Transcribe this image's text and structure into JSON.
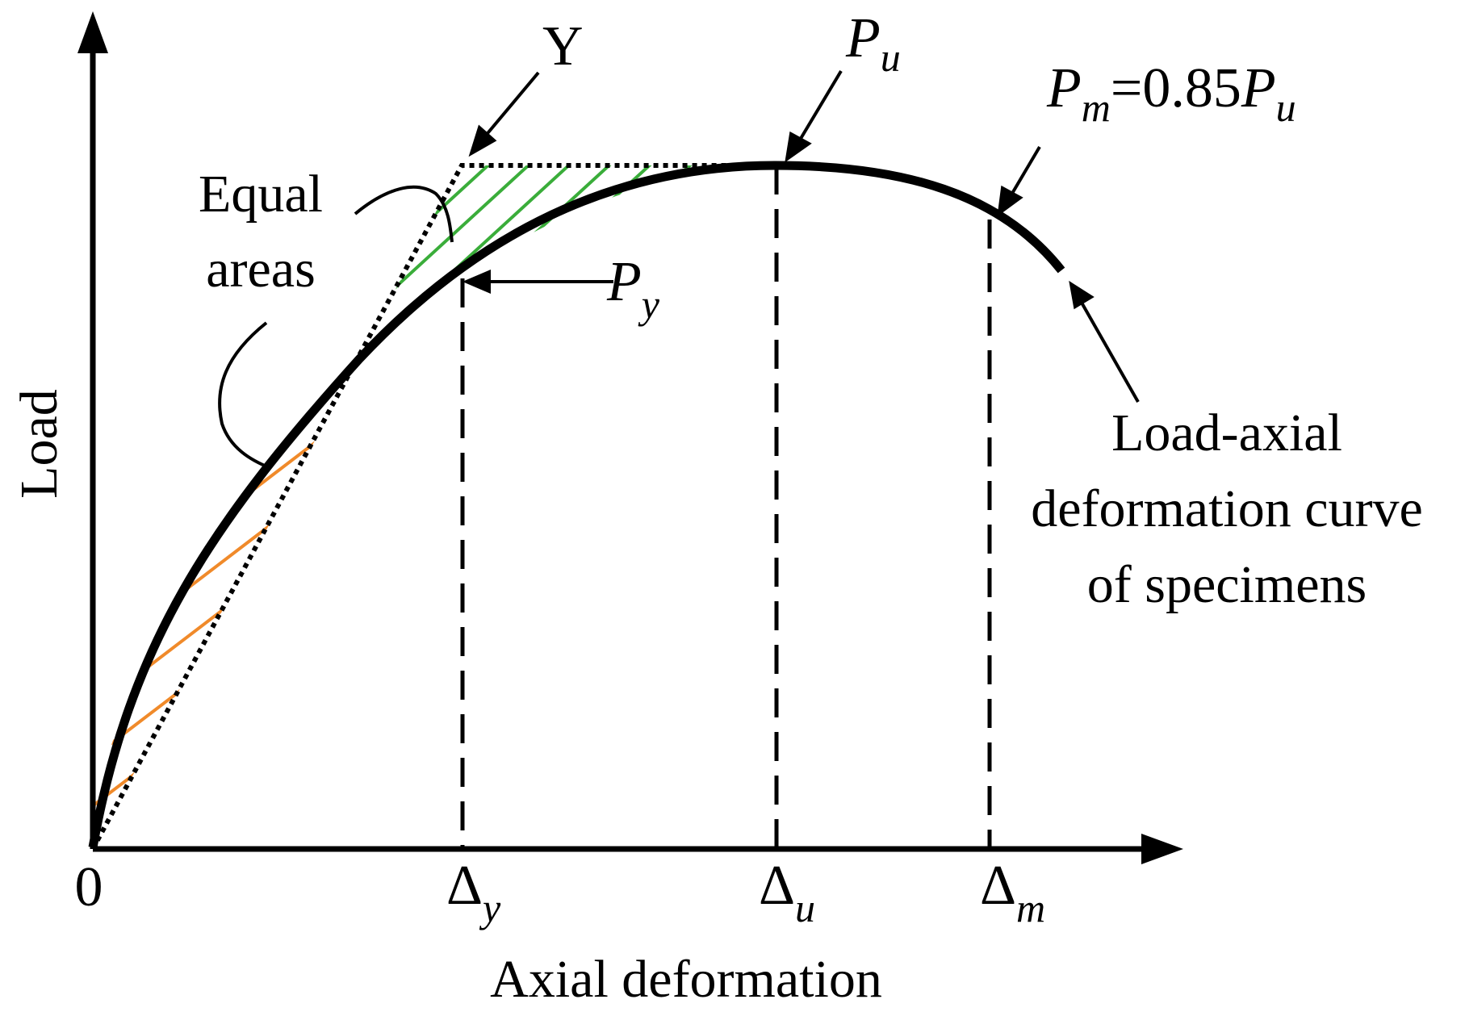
{
  "axes": {
    "x_label": "Axial deformation",
    "y_label": "Load",
    "origin_label": "0"
  },
  "ticks": {
    "delta_symbol": "Δ",
    "dy_sub": "y",
    "du_sub": "u",
    "dm_sub": "m"
  },
  "labels": {
    "yield_point": "Y",
    "pu_main": "P",
    "pu_sub": "u",
    "py_main": "P",
    "py_sub": "y",
    "pm_main": "P",
    "pm_sub": "m",
    "pm_eq": "=0.85",
    "pm_rhs_main": "P",
    "pm_rhs_sub": "u",
    "equal_line1": "Equal",
    "equal_line2": "areas",
    "curve_line1": "Load-axial",
    "curve_line2": "deformation curve",
    "curve_line3": "of specimens"
  },
  "colors": {
    "curve": "#000000",
    "hatch_lower": "#f08a2a",
    "hatch_upper": "#3aad3a"
  }
}
